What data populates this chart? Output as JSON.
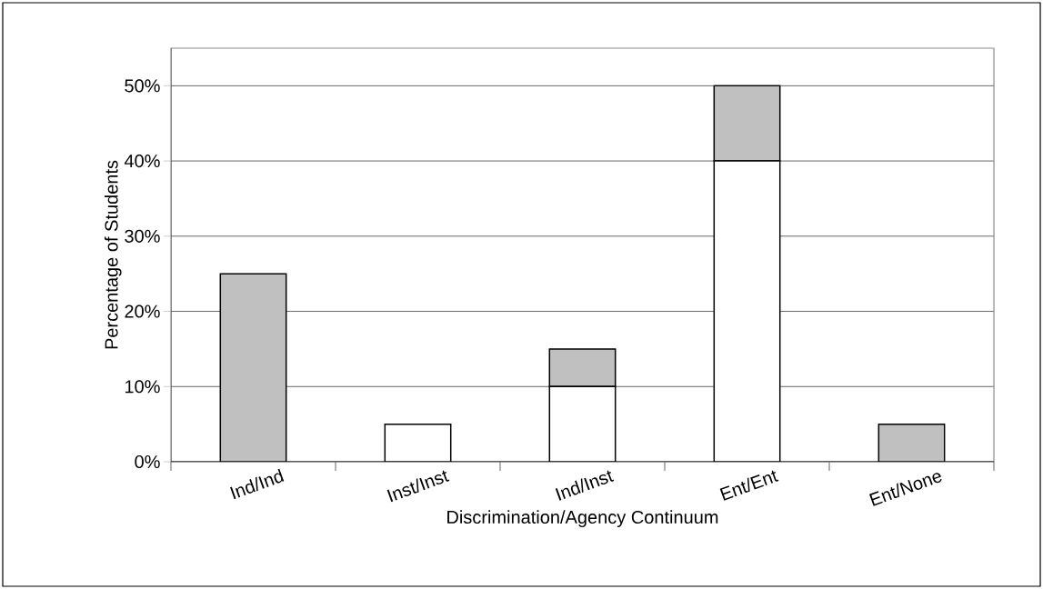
{
  "chart_data": {
    "type": "bar",
    "stacked": true,
    "xlabel": "Discrimination/Agency Continuum",
    "ylabel": "Percentage of Students",
    "categories": [
      "Ind/Ind",
      "Inst/Inst",
      "Ind/Inst",
      "Ent/Ent",
      "Ent/None"
    ],
    "series": [
      {
        "color": "#ffffff",
        "values": [
          0,
          5,
          10,
          40,
          0
        ]
      },
      {
        "color": "#c0c0c0",
        "values": [
          25,
          0,
          5,
          10,
          5
        ]
      }
    ],
    "ylim": [
      0,
      55
    ],
    "yticks": [
      {
        "value": 0,
        "label": "0%"
      },
      {
        "value": 10,
        "label": "10%"
      },
      {
        "value": 20,
        "label": "20%"
      },
      {
        "value": 30,
        "label": "30%"
      },
      {
        "value": 40,
        "label": "40%"
      },
      {
        "value": 50,
        "label": "50%"
      }
    ],
    "grid": "y"
  }
}
